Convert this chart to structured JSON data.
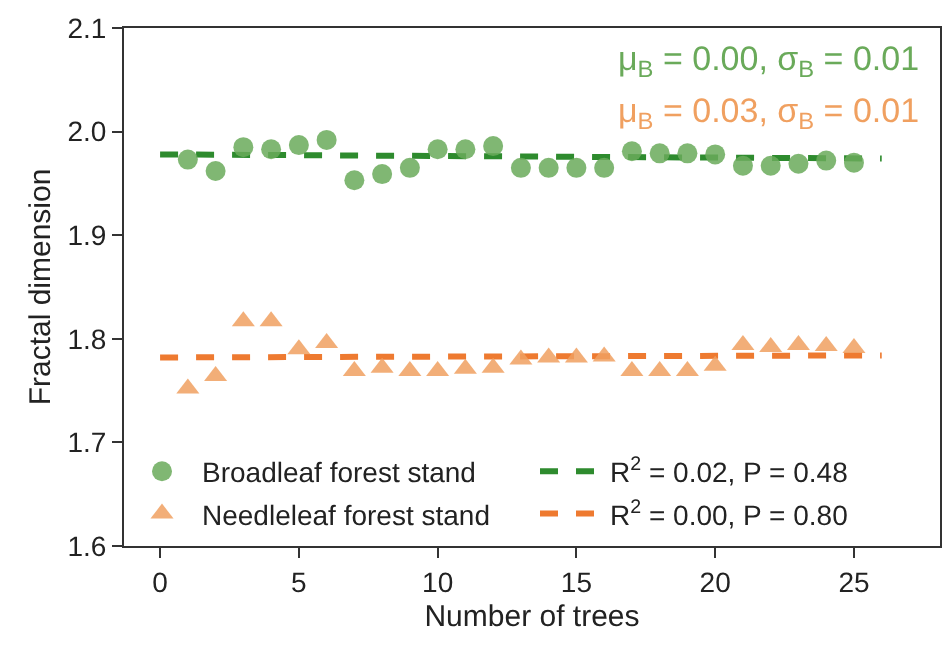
{
  "chart_data": {
    "type": "scatter",
    "xlabel": "Number of trees",
    "ylabel": "Fractal dimension",
    "xlim": [
      -1.3,
      28.1
    ],
    "xticks": [
      0,
      5,
      10,
      15,
      20,
      25
    ],
    "ylim": [
      1.6,
      2.1
    ],
    "yticks": [
      1.6,
      1.7,
      1.8,
      1.9,
      {
        "value": 2.0,
        "label": "2.0"
      },
      2.1
    ],
    "legend": "bottom",
    "annotations": [
      "μ$_{B}$ = 0.00, σ$_{B}$ = 0.01",
      "μ$_{B}$ = 0.03, σ$_{B}$ = 0.01"
    ],
    "series": [
      {
        "name": "Broadleaf forest stand",
        "marker": "circle",
        "color": "#6aaa5a",
        "x": [
          1,
          2,
          3,
          4,
          5,
          6,
          7,
          8,
          9,
          10,
          11,
          12,
          13,
          14,
          15,
          16,
          17,
          18,
          19,
          20,
          21,
          22,
          23,
          24,
          25
        ],
        "values": [
          1.973,
          1.962,
          1.985,
          1.983,
          1.987,
          1.992,
          1.953,
          1.959,
          1.965,
          1.983,
          1.983,
          1.986,
          1.965,
          1.965,
          1.965,
          1.965,
          1.981,
          1.979,
          1.979,
          1.978,
          1.967,
          1.967,
          1.969,
          1.972,
          1.97
        ]
      },
      {
        "name": "R$^{2}$ = 0.02, P = 0.48",
        "type": "line",
        "line_style": "dashed",
        "marker": "none",
        "color": "#2e8b2e",
        "x": [
          0,
          26
        ],
        "values": [
          1.978,
          1.974
        ]
      },
      {
        "name": "Needleleaf forest stand",
        "marker": "triangle",
        "color": "#f0a060",
        "x": [
          1,
          2,
          3,
          4,
          5,
          6,
          7,
          8,
          9,
          10,
          11,
          12,
          13,
          14,
          15,
          16,
          17,
          18,
          19,
          20,
          21,
          22,
          23,
          24,
          25
        ],
        "values": [
          1.752,
          1.764,
          1.817,
          1.817,
          1.79,
          1.796,
          1.769,
          1.772,
          1.769,
          1.769,
          1.771,
          1.772,
          1.78,
          1.782,
          1.782,
          1.783,
          1.769,
          1.769,
          1.769,
          1.774,
          1.794,
          1.792,
          1.794,
          1.793,
          1.791
        ]
      },
      {
        "name": "R$^{2}$ = 0.00, P = 0.80",
        "type": "line",
        "line_style": "dashed",
        "marker": "none",
        "color": "#ee7a30",
        "x": [
          0,
          26
        ],
        "values": [
          1.782,
          1.784
        ]
      }
    ]
  }
}
